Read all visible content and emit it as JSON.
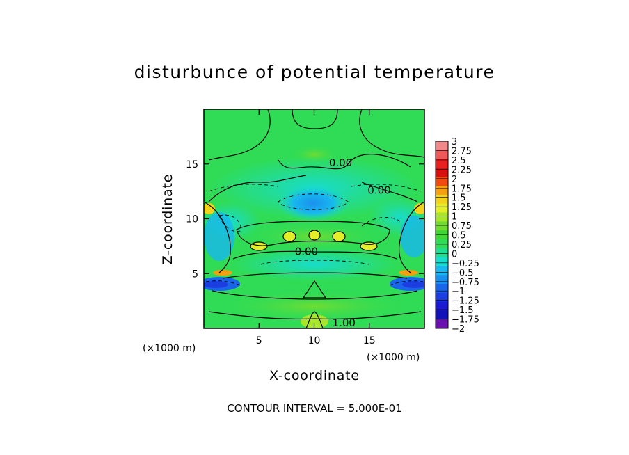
{
  "chart_data": {
    "type": "heatmap",
    "subtype": "filled-contour",
    "title": "disturbunce of potential temperature",
    "xlabel": "X-coordinate",
    "ylabel": "Z-coordinate",
    "x_unit_label": "(×1000 m)",
    "y_unit_label": "(×1000 m)",
    "xlim": [
      0,
      20
    ],
    "ylim": [
      0,
      20
    ],
    "x_ticks": [
      5,
      10,
      15
    ],
    "y_ticks": [
      5,
      10,
      15
    ],
    "colorbar": {
      "levels": [
        3,
        2.75,
        2.5,
        2.25,
        2,
        1.75,
        1.5,
        1.25,
        1,
        0.75,
        0.5,
        0.25,
        0,
        -0.25,
        -0.5,
        -0.75,
        -1,
        -1.25,
        -1.5,
        -1.75,
        -2
      ],
      "labels": [
        "3",
        "2.75",
        "2.5",
        "2.25",
        "2",
        "1.75",
        "1.5",
        "1.25",
        "1",
        "0.75",
        "0.5",
        "0.25",
        "0",
        "−0.25",
        "−0.5",
        "−0.75",
        "−1",
        "−1.25",
        "−1.5",
        "−1.75",
        "−2"
      ],
      "colors": [
        "#f08a8a",
        "#ee5a5a",
        "#e82020",
        "#d80f0f",
        "#f04a10",
        "#f4a010",
        "#f2d21a",
        "#e4ee28",
        "#a8e62a",
        "#70dc32",
        "#40d638",
        "#30dc55",
        "#22dc90",
        "#18dccc",
        "#18b8ee",
        "#1a90ee",
        "#1a66ea",
        "#1c3ee0",
        "#1a1ad2",
        "#1212b8",
        "#6a10b0"
      ]
    },
    "contour_labels": [
      {
        "text": "0.00",
        "x": 12.4,
        "z": 14.8
      },
      {
        "text": "0.00",
        "x": 15.9,
        "z": 12.3
      },
      {
        "text": "0.00",
        "x": 9.3,
        "z": 6.7
      },
      {
        "text": "1.00",
        "x": 12.7,
        "z": 0.2
      }
    ],
    "contour_interval_text": "CONTOUR INTERVAL = 5.000E-01",
    "grid": false
  }
}
